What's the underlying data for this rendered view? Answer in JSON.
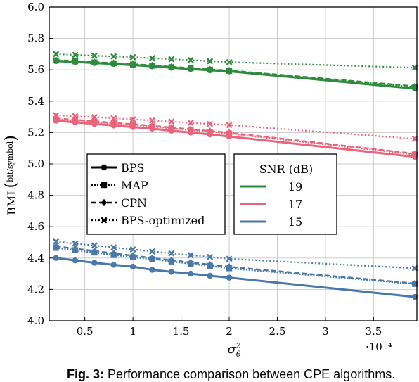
{
  "chart_data": {
    "type": "line",
    "title": "",
    "xlabel": "σθ²",
    "ylabel": "BMI",
    "ylabel_unit": "bit/symbol",
    "x_multiplier_label": "·10⁻⁴",
    "xlim": [
      0.13,
      3.95
    ],
    "ylim": [
      4.0,
      6.0
    ],
    "xticks": [
      "0.5",
      "1",
      "1.5",
      "2",
      "2.5",
      "3",
      "3.5"
    ],
    "yticks": [
      "4.0",
      "4.2",
      "4.4",
      "4.6",
      "4.8",
      "5.0",
      "5.2",
      "5.4",
      "5.6",
      "5.8",
      "6.0"
    ],
    "grid": true,
    "legend_methods_title": "",
    "legend_methods": [
      "BPS",
      "MAP",
      "CPN",
      "BPS-optimized"
    ],
    "legend_snr_title": "SNR (dB)",
    "legend_snr": [
      "19",
      "17",
      "15"
    ],
    "colors": {
      "19": "#2e8b3e",
      "17": "#e8647a",
      "15": "#4a78a8"
    },
    "x": [
      0.2,
      0.4,
      0.6,
      0.8,
      1.0,
      1.2,
      1.4,
      1.6,
      1.8,
      2.0,
      3.93
    ],
    "series": [
      {
        "name": "BPS",
        "snr": "19",
        "marker": "circle",
        "values": [
          5.655,
          5.65,
          5.643,
          5.637,
          5.63,
          5.622,
          5.613,
          5.605,
          5.597,
          5.59,
          5.48
        ]
      },
      {
        "name": "MAP",
        "snr": "19",
        "marker": "square",
        "values": [
          5.66,
          5.654,
          5.647,
          5.641,
          5.634,
          5.626,
          5.617,
          5.609,
          5.601,
          5.593,
          5.49
        ]
      },
      {
        "name": "CPN",
        "snr": "19",
        "marker": "diamond",
        "values": [
          5.662,
          5.656,
          5.649,
          5.643,
          5.636,
          5.628,
          5.619,
          5.611,
          5.603,
          5.595,
          5.495
        ]
      },
      {
        "name": "BPS-optimized",
        "snr": "19",
        "marker": "cross",
        "values": [
          5.7,
          5.695,
          5.69,
          5.685,
          5.68,
          5.674,
          5.668,
          5.662,
          5.655,
          5.649,
          5.613
        ]
      },
      {
        "name": "BPS",
        "snr": "17",
        "marker": "circle",
        "values": [
          5.275,
          5.265,
          5.255,
          5.245,
          5.235,
          5.225,
          5.212,
          5.2,
          5.188,
          5.175,
          5.045
        ]
      },
      {
        "name": "MAP",
        "snr": "17",
        "marker": "square",
        "values": [
          5.285,
          5.276,
          5.267,
          5.257,
          5.248,
          5.238,
          5.227,
          5.216,
          5.205,
          5.194,
          5.06
        ]
      },
      {
        "name": "CPN",
        "snr": "17",
        "marker": "diamond",
        "values": [
          5.29,
          5.281,
          5.272,
          5.262,
          5.253,
          5.243,
          5.232,
          5.221,
          5.21,
          5.199,
          5.065
        ]
      },
      {
        "name": "BPS-optimized",
        "snr": "17",
        "marker": "cross",
        "values": [
          5.31,
          5.304,
          5.298,
          5.291,
          5.284,
          5.277,
          5.27,
          5.262,
          5.255,
          5.248,
          5.16
        ]
      },
      {
        "name": "BPS",
        "snr": "15",
        "marker": "circle",
        "values": [
          4.4,
          4.385,
          4.37,
          4.357,
          4.345,
          4.325,
          4.312,
          4.3,
          4.287,
          4.275,
          4.152
        ]
      },
      {
        "name": "MAP",
        "snr": "15",
        "marker": "square",
        "values": [
          4.465,
          4.45,
          4.435,
          4.42,
          4.405,
          4.393,
          4.378,
          4.364,
          4.35,
          4.335,
          4.235
        ]
      },
      {
        "name": "CPN",
        "snr": "15",
        "marker": "diamond",
        "values": [
          4.475,
          4.46,
          4.445,
          4.43,
          4.415,
          4.4,
          4.386,
          4.372,
          4.358,
          4.344,
          4.238
        ]
      },
      {
        "name": "BPS-optimized",
        "snr": "15",
        "marker": "cross",
        "values": [
          4.505,
          4.492,
          4.48,
          4.467,
          4.455,
          4.442,
          4.43,
          4.418,
          4.407,
          4.395,
          4.335
        ]
      }
    ]
  },
  "caption": {
    "label": "Fig. 3:",
    "text": "Performance comparison between CPE algorithms."
  }
}
